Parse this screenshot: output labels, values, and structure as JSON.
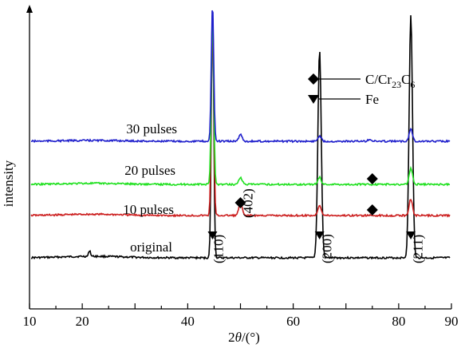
{
  "chart_data": {
    "type": "line",
    "title": "",
    "xlabel_parts": [
      "2",
      "θ",
      "/(°)"
    ],
    "ylabel": "intensity",
    "xlim": [
      10,
      90
    ],
    "x_ticks": [
      10,
      20,
      40,
      60,
      80,
      90
    ],
    "x_tick_labels": [
      "10",
      "20",
      "40",
      "60",
      "80",
      "90"
    ],
    "y_ticks": false,
    "grid": false,
    "legend": {
      "placement": "top-right",
      "entries": [
        {
          "marker": "diamond",
          "label_parts": [
            "C/Cr",
            "23",
            "C",
            "6"
          ]
        },
        {
          "marker": "down-triangle",
          "label_parts": [
            "Fe"
          ]
        }
      ]
    },
    "series": [
      {
        "name": "original",
        "color": "#000000",
        "peaks": [
          {
            "x": 44.7,
            "h": 1.0
          },
          {
            "x": 65.0,
            "h": 0.83
          },
          {
            "x": 82.3,
            "h": 0.97
          }
        ],
        "bump": {
          "x": 21.4,
          "h": 0.12
        }
      },
      {
        "name": "10 pulses",
        "color": "#cc1f1f",
        "peaks": [
          {
            "x": 44.7,
            "h": 1.0
          },
          {
            "x": 50.0,
            "h": 0.06
          },
          {
            "x": 65.0,
            "h": 0.05
          },
          {
            "x": 82.3,
            "h": 0.08
          }
        ]
      },
      {
        "name": "20 pulses",
        "color": "#1fe01f",
        "peaks": [
          {
            "x": 44.7,
            "h": 1.0
          },
          {
            "x": 50.0,
            "h": 0.04
          },
          {
            "x": 65.0,
            "h": 0.04
          },
          {
            "x": 82.3,
            "h": 0.09
          }
        ]
      },
      {
        "name": "30 pulses",
        "color": "#1f1fcc",
        "peaks": [
          {
            "x": 44.7,
            "h": 1.0
          },
          {
            "x": 50.0,
            "h": 0.05
          },
          {
            "x": 65.0,
            "h": 0.04
          },
          {
            "x": 74.5,
            "h": 0.015
          },
          {
            "x": 82.3,
            "h": 0.09
          }
        ]
      }
    ],
    "annotations": [
      {
        "text": "(110)",
        "x": 45.0,
        "kind": "hkl"
      },
      {
        "text": "(402)",
        "x": 50.6,
        "kind": "hkl"
      },
      {
        "text": "(200)",
        "x": 65.6,
        "kind": "hkl"
      },
      {
        "text": "(211)",
        "x": 82.8,
        "kind": "hkl"
      }
    ],
    "markers": [
      {
        "marker": "down-triangle",
        "x": 44.7,
        "series": "original"
      },
      {
        "marker": "down-triangle",
        "x": 65.0,
        "series": "original"
      },
      {
        "marker": "down-triangle",
        "x": 82.3,
        "series": "original"
      },
      {
        "marker": "diamond",
        "x": 50.0,
        "series": "10 pulses"
      },
      {
        "marker": "diamond",
        "x": 75.0,
        "series": "10 pulses"
      },
      {
        "marker": "diamond",
        "x": 75.0,
        "series": "20 pulses"
      }
    ]
  }
}
